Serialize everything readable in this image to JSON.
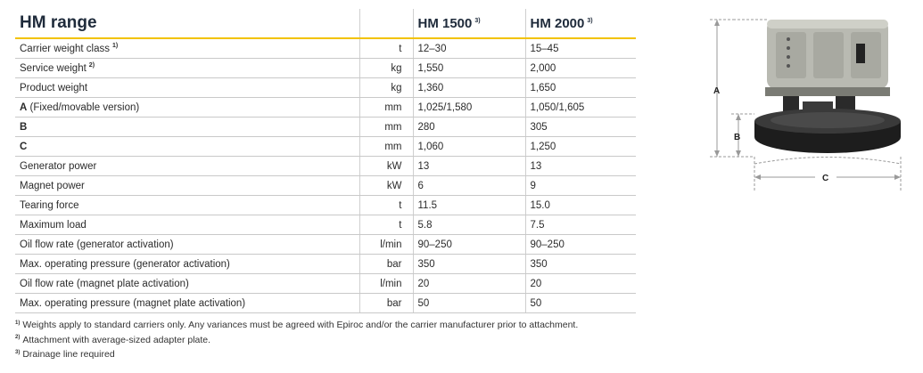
{
  "header": {
    "title": "HM range",
    "models": [
      {
        "label": "HM 1500",
        "note": "3)"
      },
      {
        "label": "HM 2000",
        "note": "3)"
      }
    ]
  },
  "rows": [
    {
      "name": "Carrier weight class",
      "note": "1)",
      "unit": "t",
      "a": "12–30",
      "b": "15–45"
    },
    {
      "name": "Service weight",
      "note": "2)",
      "unit": "kg",
      "a": "1,550",
      "b": "2,000"
    },
    {
      "name": "Product weight",
      "note": "",
      "unit": "kg",
      "a": "1,360",
      "b": "1,650"
    },
    {
      "name": "A",
      "suffix": "(Fixed/movable version)",
      "note": "",
      "unit": "mm",
      "a": "1,025/1,580",
      "b": "1,050/1,605"
    },
    {
      "name": "B",
      "note": "",
      "unit": "mm",
      "a": "280",
      "b": "305"
    },
    {
      "name": "C",
      "note": "",
      "unit": "mm",
      "a": "1,060",
      "b": "1,250"
    },
    {
      "name": "Generator power",
      "note": "",
      "unit": "kW",
      "a": "13",
      "b": "13"
    },
    {
      "name": "Magnet power",
      "note": "",
      "unit": "kW",
      "a": "6",
      "b": "9"
    },
    {
      "name": "Tearing force",
      "note": "",
      "unit": "t",
      "a": "11.5",
      "b": "15.0"
    },
    {
      "name": "Maximum load",
      "note": "",
      "unit": "t",
      "a": "5.8",
      "b": "7.5"
    },
    {
      "name": "Oil flow rate (generator activation)",
      "note": "",
      "unit": "l/min",
      "a": "90–250",
      "b": "90–250"
    },
    {
      "name": "Max. operating pressure (generator activation)",
      "note": "",
      "unit": "bar",
      "a": "350",
      "b": "350"
    },
    {
      "name": "Oil flow rate (magnet plate activation)",
      "note": "",
      "unit": "l/min",
      "a": "20",
      "b": "20"
    },
    {
      "name": "Max. operating pressure (magnet plate activation)",
      "note": "",
      "unit": "bar",
      "a": "50",
      "b": "50"
    }
  ],
  "footnotes": [
    {
      "mark": "1)",
      "text": "Weights apply to standard carriers only. Any variances must be agreed with Epiroc and/or the carrier manufacturer prior to attachment."
    },
    {
      "mark": "2)",
      "text": "Attachment with average-sized adapter plate."
    },
    {
      "mark": "3)",
      "text": "Drainage line required"
    }
  ],
  "figure": {
    "labels": {
      "a": "A",
      "b": "B",
      "c": "C"
    },
    "colors": {
      "housing": "#b9bab2",
      "magnet": "#1d1d1d",
      "dimension": "#9a9a9a"
    }
  }
}
